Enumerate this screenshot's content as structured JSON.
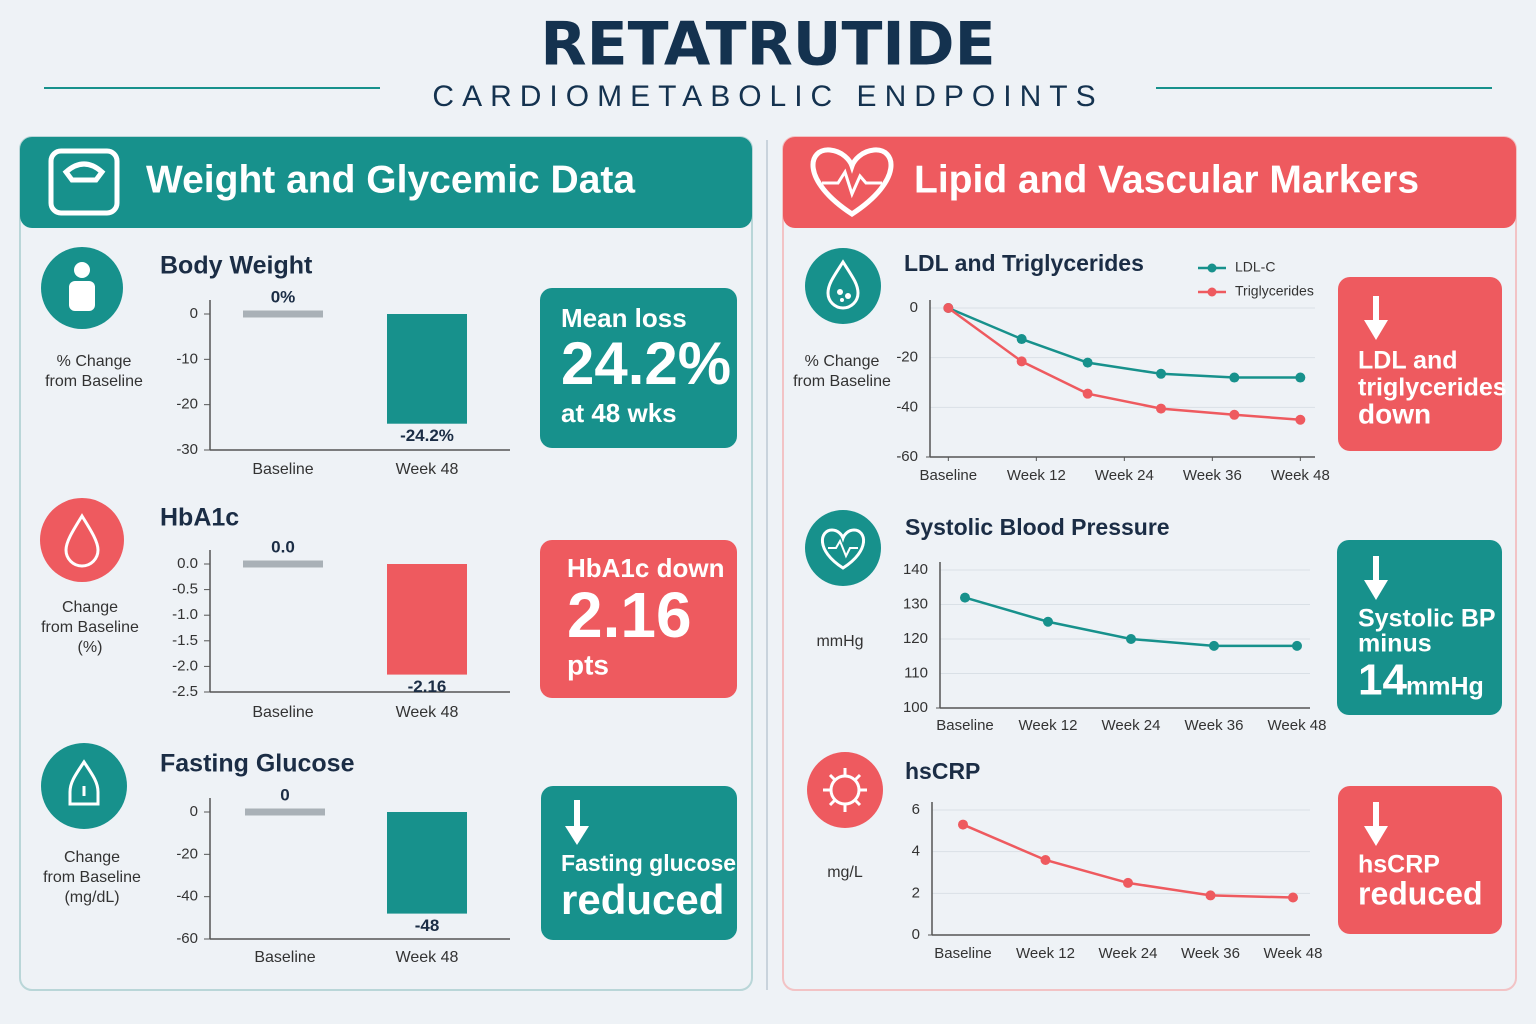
{
  "header": {
    "title": "RETATRUTIDE",
    "subtitle": "CARDIOMETABOLIC ENDPOINTS"
  },
  "panels": [
    {
      "title": "Weight and Glycemic Data"
    },
    {
      "title": "Lipid and Vascular Markers"
    }
  ],
  "callouts": [
    {
      "lines": [
        "Mean loss",
        "24.2%",
        "at 48 wks"
      ]
    },
    {
      "lines": [
        "HbA1c down",
        "2.16",
        "pts"
      ]
    },
    {
      "lines": [
        "Fasting glucose",
        "reduced"
      ]
    },
    {
      "lines": [
        "LDL and",
        "triglycerides",
        "down"
      ]
    },
    {
      "lines": [
        "Systolic BP",
        "minus",
        "14",
        "mmHg"
      ]
    },
    {
      "lines": [
        "hsCRP",
        "reduced"
      ]
    }
  ],
  "chart_data": [
    {
      "type": "bar",
      "title": "Body Weight",
      "ylabel": [
        "% Change",
        "from Baseline"
      ],
      "categories": [
        "Baseline",
        "Week 48"
      ],
      "values": [
        0,
        -24.2
      ],
      "value_labels": [
        "0%",
        "-24.2%"
      ],
      "colors": [
        "#a9b1b7",
        "#17918c"
      ],
      "ylim": [
        -30,
        0
      ],
      "yticks": [
        0,
        -10,
        -20,
        -30
      ]
    },
    {
      "type": "bar",
      "title": "HbA1c",
      "ylabel": [
        "Change",
        "from Baseline",
        "(%)"
      ],
      "categories": [
        "Baseline",
        "Week 48"
      ],
      "values": [
        0,
        -2.16
      ],
      "value_labels": [
        "0.0",
        "-2.16"
      ],
      "colors": [
        "#a9b1b7",
        "#ee5a5f"
      ],
      "ylim": [
        -2.5,
        0
      ],
      "yticks": [
        {
          "value": 0,
          "label": "0.0"
        },
        -0.5,
        {
          "value": -1,
          "label": "-1.0"
        },
        -1.5,
        {
          "value": -2,
          "label": "-2.0"
        },
        -2.5
      ]
    },
    {
      "type": "bar",
      "title": "Fasting Glucose",
      "ylabel": [
        "Change",
        "from Baseline",
        "(mg/dL)"
      ],
      "categories": [
        "Baseline",
        "Week 48"
      ],
      "values": [
        0,
        -48
      ],
      "colors": [
        "#a9b1b7",
        "#17918c"
      ],
      "ylim": [
        -60,
        0
      ],
      "yticks": [
        0,
        -20,
        -40,
        -60
      ]
    },
    {
      "type": "line",
      "title": "LDL and Triglycerides",
      "ylabel": [
        "% Change",
        "from Baseline"
      ],
      "x": [
        0,
        10,
        19,
        29,
        39,
        48
      ],
      "xlim": [
        -2.5,
        50
      ],
      "xticks": [
        {
          "value": 0,
          "label": "Baseline"
        },
        {
          "value": 12,
          "label": "Week 12"
        },
        {
          "value": 24,
          "label": "Week 24"
        },
        {
          "value": 36,
          "label": "Week 36"
        },
        {
          "value": 48,
          "label": "Week 48"
        }
      ],
      "series": [
        {
          "name": "LDL-C",
          "color": "#17918c",
          "values": [
            0,
            -12.5,
            -22,
            -26.5,
            -28,
            -28
          ]
        },
        {
          "name": "Triglycerides",
          "color": "#ee5a5f",
          "values": [
            0,
            -21.5,
            -34.5,
            -40.5,
            -43,
            -45
          ]
        }
      ],
      "ylim": [
        -60,
        0
      ],
      "yticks": [
        0,
        -20,
        -40,
        -60
      ],
      "grid": true,
      "legend": "top-right"
    },
    {
      "type": "line",
      "title": "Systolic Blood Pressure",
      "ylabel": [
        "mmHg"
      ],
      "categories": [
        "Baseline",
        "Week 12",
        "Week 24",
        "Week 36",
        "Week 48"
      ],
      "values": [
        132,
        125,
        120,
        118,
        118
      ],
      "color": "#17918c",
      "ylim": [
        100,
        140
      ],
      "yticks": [
        100,
        110,
        120,
        130,
        140
      ],
      "grid": true
    },
    {
      "type": "line",
      "title": "hsCRP",
      "ylabel": [
        "mg/L"
      ],
      "categories": [
        "Baseline",
        "Week 12",
        "Week 24",
        "Week 36",
        "Week 48"
      ],
      "values": [
        5.3,
        3.6,
        2.5,
        1.9,
        1.8
      ],
      "color": "#ee5a5f",
      "ylim": [
        0,
        6
      ],
      "yticks": [
        0,
        2,
        4,
        6
      ],
      "grid": true
    }
  ]
}
